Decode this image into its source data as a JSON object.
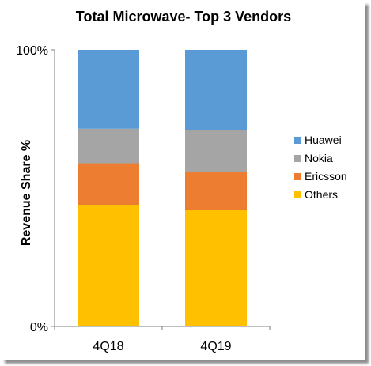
{
  "chart_data": {
    "type": "bar",
    "stacked": true,
    "title": "Total Microwave- Top 3 Vendors",
    "xlabel": "",
    "ylabel": "Revenue Share %",
    "categories": [
      "4Q18",
      "4Q19"
    ],
    "series": [
      {
        "name": "Others",
        "color": "#FFC000",
        "values": [
          44,
          42
        ]
      },
      {
        "name": "Ericsson",
        "color": "#ED7D31",
        "values": [
          15,
          14
        ]
      },
      {
        "name": "Nokia",
        "color": "#A5A5A5",
        "values": [
          12.5,
          15
        ]
      },
      {
        "name": "Huawei",
        "color": "#5B9BD5",
        "values": [
          28.5,
          29
        ]
      }
    ],
    "legend_order": [
      "Huawei",
      "Nokia",
      "Ericsson",
      "Others"
    ],
    "ylim": [
      0,
      100
    ],
    "yticks": [
      "0%",
      "100%"
    ],
    "grid": false,
    "legend_position": "right"
  }
}
